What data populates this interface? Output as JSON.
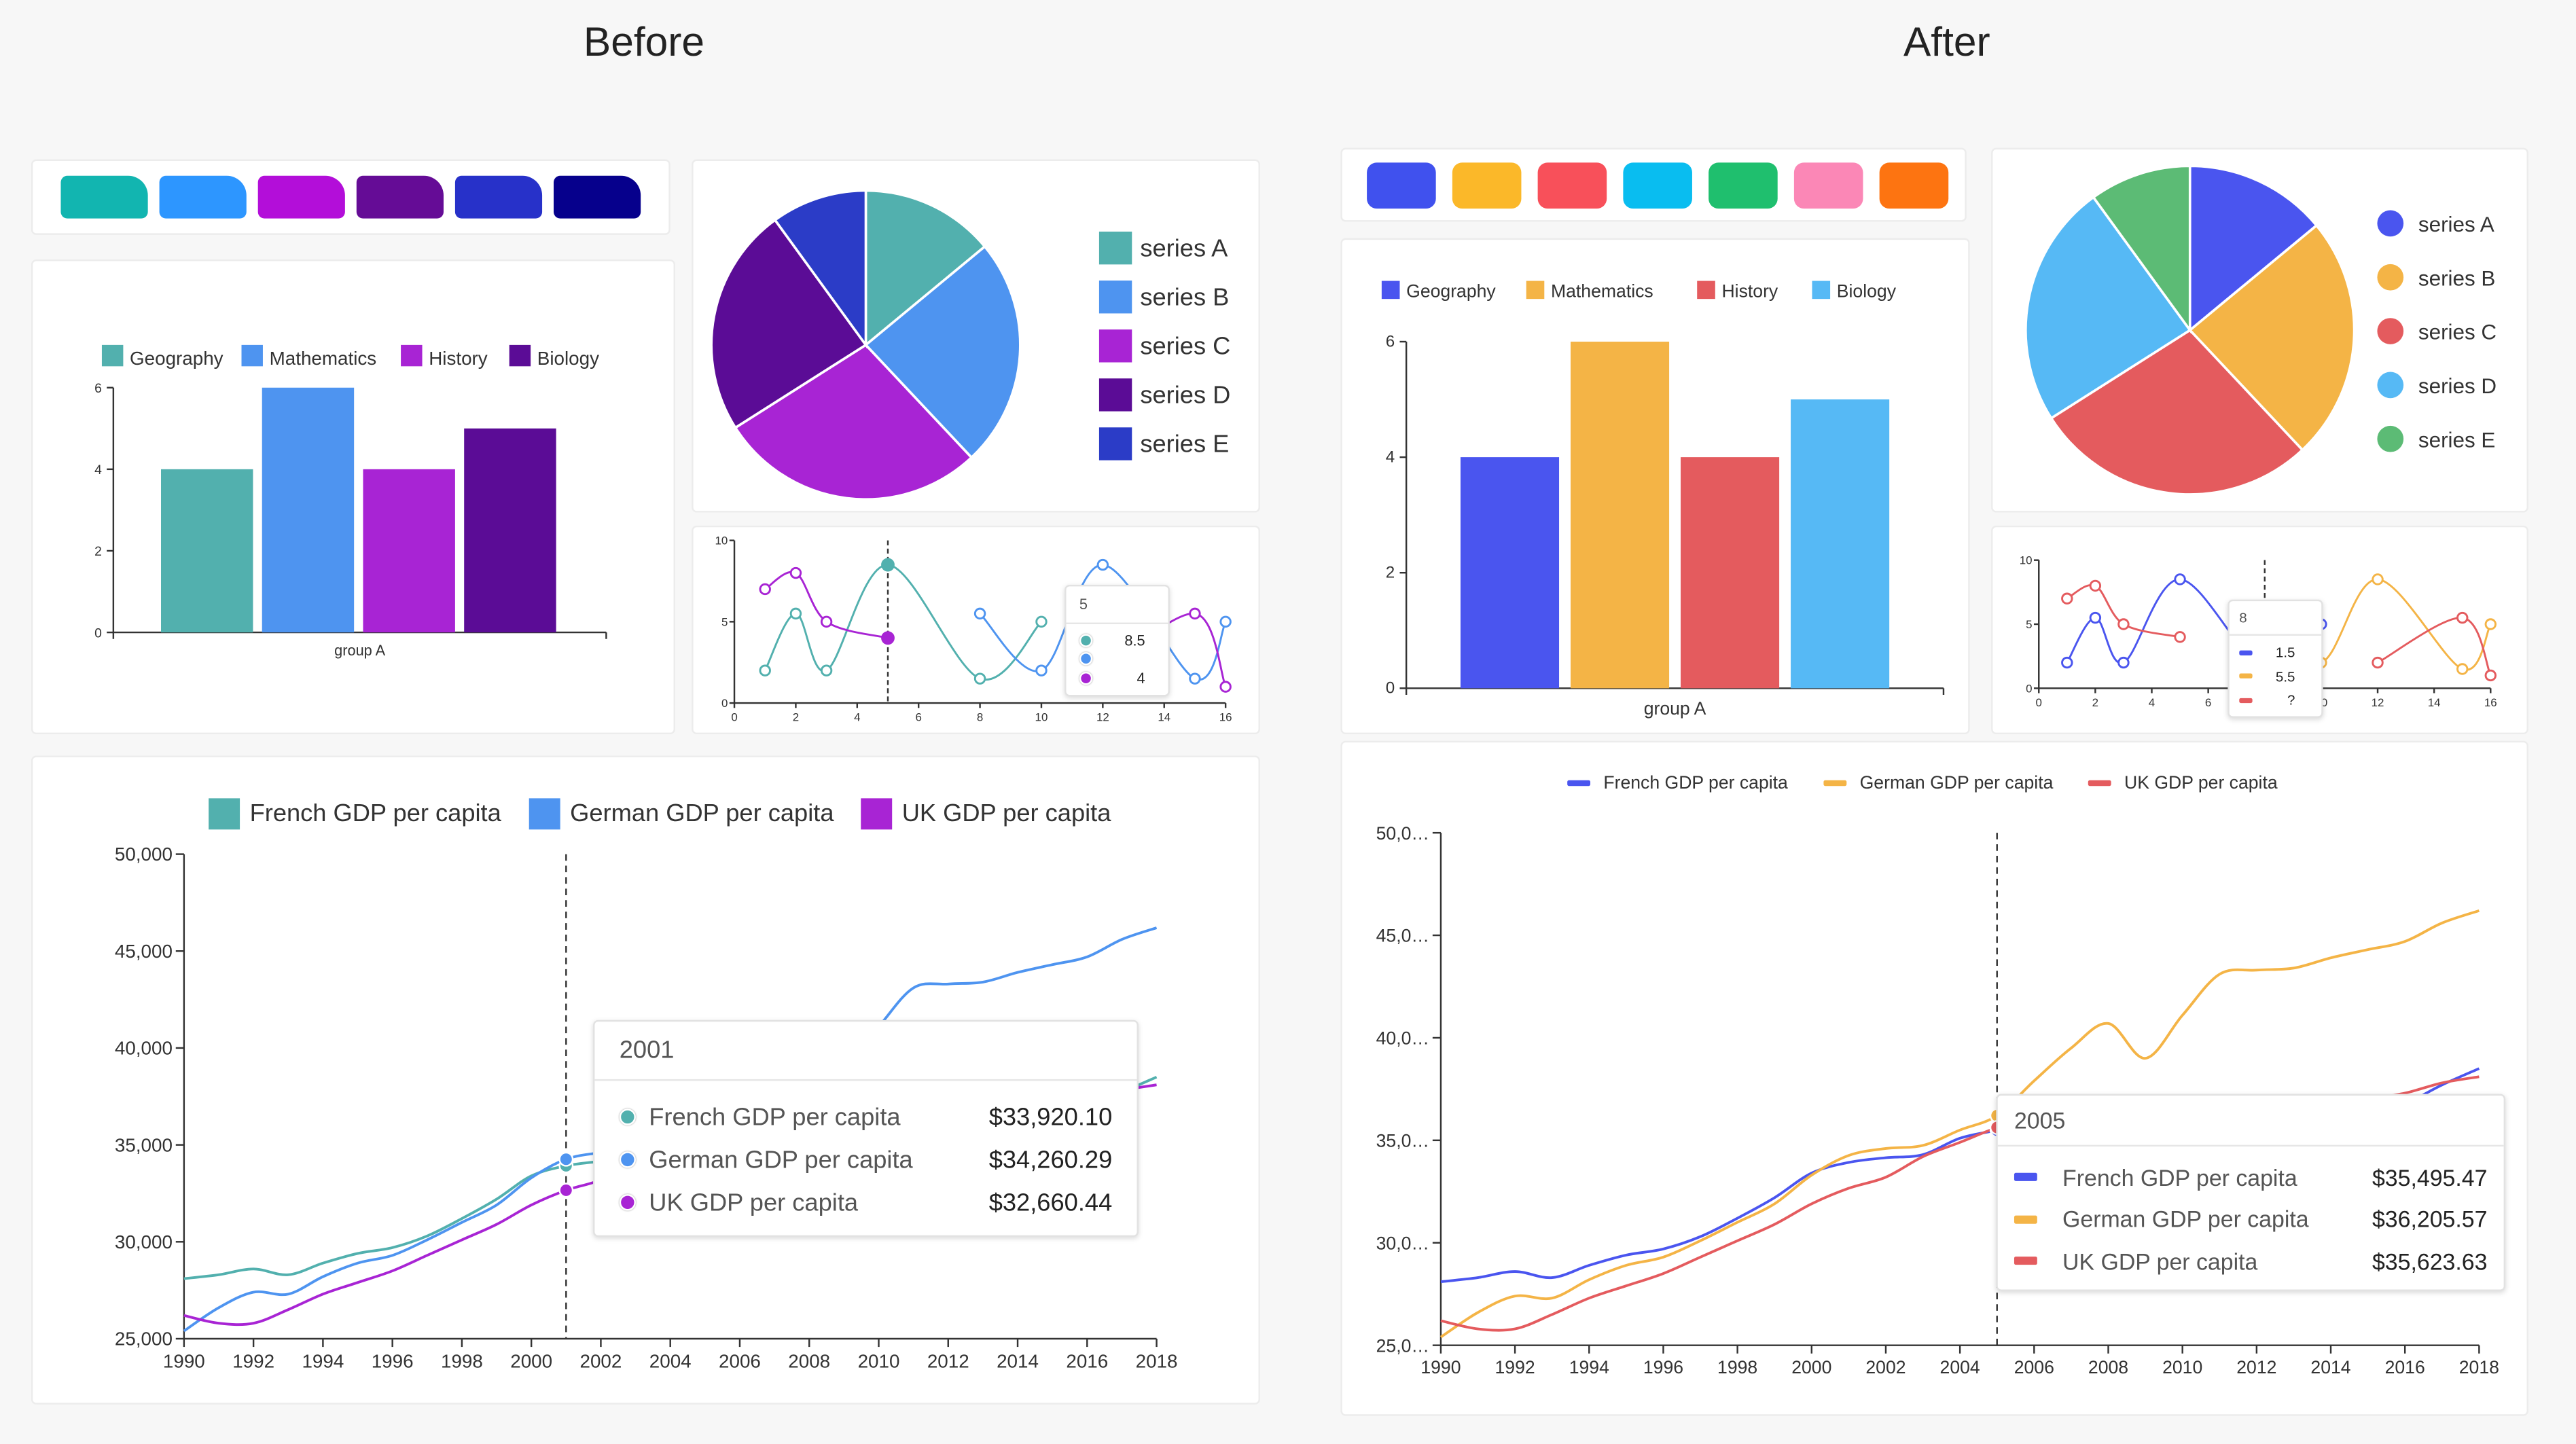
{
  "before": {
    "title": "Before",
    "swatches": [
      "#12b5b0",
      "#2d96ff",
      "#b30ed9",
      "#650c96",
      "#2731c9",
      "#06008c"
    ]
  },
  "after": {
    "title": "After",
    "swatches": [
      "#4051ee",
      "#fbb829",
      "#f8505a",
      "#09bdf0",
      "#1fbf6e",
      "#fb87b6",
      "#fd7411"
    ]
  },
  "chart_data": [
    {
      "type": "bar",
      "categories": [
        "group A"
      ],
      "series": [
        {
          "name": "Geography",
          "values": [
            4
          ]
        },
        {
          "name": "Mathematics",
          "values": [
            6
          ]
        },
        {
          "name": "History",
          "values": [
            4
          ]
        },
        {
          "name": "Biology",
          "values": [
            5
          ]
        }
      ],
      "colors": [
        "#52b0ae",
        "#4e94f0",
        "#a824d4",
        "#5b0c96"
      ],
      "ylim": [
        0,
        6
      ],
      "yticks": [
        "0",
        "2",
        "4",
        "6"
      ],
      "legend": "top"
    },
    {
      "type": "pie",
      "labels": [
        "series A",
        "series B",
        "series C",
        "series D",
        "series E"
      ],
      "values": [
        14,
        24,
        28,
        24,
        10
      ],
      "colors": [
        "#52b0ae",
        "#4e94f0",
        "#a824d4",
        "#5b0c96",
        "#2b3cc7"
      ],
      "legend": "right",
      "legend_marker": "square"
    },
    {
      "type": "line",
      "xlim": [
        0,
        16
      ],
      "ylim": [
        0,
        10
      ],
      "xticks": [
        "0",
        "2",
        "4",
        "6",
        "8",
        "10",
        "12",
        "14",
        "16"
      ],
      "yticks": [
        "0",
        "5",
        "10"
      ],
      "colors": [
        "#52b0ae",
        "#4e94f0",
        "#a824d4"
      ],
      "series": [
        {
          "points": [
            [
              1,
              2
            ],
            [
              2,
              5.5
            ],
            [
              3,
              2
            ],
            [
              5,
              8.5
            ],
            [
              8,
              1.5
            ],
            [
              10,
              5
            ]
          ]
        },
        {
          "points": [
            [
              8,
              5.5
            ],
            [
              10,
              2
            ],
            [
              12,
              8.5
            ],
            [
              15,
              1.5
            ],
            [
              16,
              5
            ]
          ]
        },
        {
          "points": [
            [
              1,
              7
            ],
            [
              2,
              8
            ],
            [
              3,
              5
            ],
            [
              5,
              4
            ],
            null,
            [
              12,
              2
            ],
            [
              15,
              5.5
            ],
            [
              16,
              1
            ]
          ]
        }
      ],
      "hover_x": 5,
      "tooltip": {
        "title": "5",
        "values": [
          "8.5",
          "",
          "4"
        ],
        "marker": "circle"
      }
    },
    {
      "type": "line",
      "title": "",
      "legend": "top",
      "legend_marker": "square",
      "x": [
        1990,
        1991,
        1992,
        1993,
        1994,
        1995,
        1996,
        1997,
        1998,
        1999,
        2000,
        2001,
        2002,
        2003,
        2004,
        2005,
        2006,
        2007,
        2008,
        2009,
        2010,
        2011,
        2012,
        2013,
        2014,
        2015,
        2016,
        2017,
        2018
      ],
      "xticks": [
        "1990",
        "1992",
        "1994",
        "1996",
        "1998",
        "2000",
        "2002",
        "2004",
        "2006",
        "2008",
        "2010",
        "2012",
        "2014",
        "2016",
        "2018"
      ],
      "yticks": [
        "25,000",
        "30,000",
        "35,000",
        "40,000",
        "45,000",
        "50,000"
      ],
      "ylim": [
        25000,
        50000
      ],
      "colors": [
        "#52b0ae",
        "#4e94f0",
        "#a824d4"
      ],
      "series": [
        {
          "name": "French GDP per capita",
          "values": [
            28100,
            28300,
            28600,
            28300,
            28900,
            29400,
            29700,
            30300,
            31200,
            32200,
            33400,
            33920,
            34150,
            34300,
            35100,
            35495,
            35900,
            36300,
            36300,
            35300,
            35600,
            36000,
            35900,
            35900,
            36100,
            36400,
            36800,
            37700,
            38500
          ]
        },
        {
          "name": "German GDP per capita",
          "values": [
            25400,
            26600,
            27400,
            27300,
            28200,
            28900,
            29300,
            30100,
            31000,
            31900,
            33300,
            34260,
            34600,
            34750,
            35500,
            36205,
            37900,
            39500,
            40700,
            39000,
            41100,
            43100,
            43300,
            43400,
            43900,
            44300,
            44700,
            45600,
            46200
          ]
        },
        {
          "name": "UK GDP per capita",
          "values": [
            26200,
            25800,
            25800,
            26500,
            27300,
            27900,
            28500,
            29300,
            30100,
            30900,
            31900,
            32660,
            33200,
            34200,
            34900,
            35624,
            36200,
            36700,
            36300,
            34800,
            35300,
            35600,
            35800,
            36100,
            36600,
            37000,
            37300,
            37800,
            38100
          ]
        }
      ],
      "hover_x": 2001,
      "tooltip": {
        "title": "2001",
        "values": [
          "$33,920.10",
          "$34,260.29",
          "$32,660.44"
        ],
        "marker": "circle"
      }
    },
    {
      "type": "bar",
      "categories": [
        "group A"
      ],
      "series": [
        {
          "name": "Geography",
          "values": [
            4
          ]
        },
        {
          "name": "Mathematics",
          "values": [
            6
          ]
        },
        {
          "name": "History",
          "values": [
            4
          ]
        },
        {
          "name": "Biology",
          "values": [
            5
          ]
        }
      ],
      "colors": [
        "#4a55ef",
        "#f4b446",
        "#e45b5e",
        "#56b9f5"
      ],
      "ylim": [
        0,
        6
      ],
      "yticks": [
        "0",
        "2",
        "4",
        "6"
      ],
      "legend": "top"
    },
    {
      "type": "pie",
      "labels": [
        "series A",
        "series B",
        "series C",
        "series D",
        "series E"
      ],
      "values": [
        14,
        24,
        28,
        24,
        10
      ],
      "colors": [
        "#4a55ef",
        "#f4b446",
        "#e45b5e",
        "#56b9f5",
        "#5cbb75"
      ],
      "legend": "right",
      "legend_marker": "circle"
    },
    {
      "type": "line",
      "xlim": [
        0,
        16
      ],
      "ylim": [
        0,
        10
      ],
      "xticks": [
        "0",
        "2",
        "4",
        "6",
        "8",
        "10",
        "12",
        "14",
        "16"
      ],
      "yticks": [
        "0",
        "5",
        "10"
      ],
      "colors": [
        "#4a55ef",
        "#f4b446",
        "#e45b5e"
      ],
      "series": [
        {
          "points": [
            [
              1,
              2
            ],
            [
              2,
              5.5
            ],
            [
              3,
              2
            ],
            [
              5,
              8.5
            ],
            [
              8,
              1.5
            ],
            [
              10,
              5
            ]
          ]
        },
        {
          "points": [
            [
              8,
              5.5
            ],
            [
              10,
              2
            ],
            [
              12,
              8.5
            ],
            [
              15,
              1.5
            ],
            [
              16,
              5
            ]
          ]
        },
        {
          "points": [
            [
              1,
              7
            ],
            [
              2,
              8
            ],
            [
              3,
              5
            ],
            [
              5,
              4
            ],
            null,
            [
              12,
              2
            ],
            [
              15,
              5.5
            ],
            [
              16,
              1
            ]
          ]
        }
      ],
      "hover_x": 8,
      "tooltip": {
        "title": "8",
        "values": [
          "1.5",
          "5.5",
          "?"
        ],
        "marker": "line"
      }
    },
    {
      "type": "line",
      "title": "",
      "legend": "top",
      "legend_marker": "line",
      "x": [
        1990,
        1991,
        1992,
        1993,
        1994,
        1995,
        1996,
        1997,
        1998,
        1999,
        2000,
        2001,
        2002,
        2003,
        2004,
        2005,
        2006,
        2007,
        2008,
        2009,
        2010,
        2011,
        2012,
        2013,
        2014,
        2015,
        2016,
        2017,
        2018
      ],
      "xticks": [
        "1990",
        "1992",
        "1994",
        "1996",
        "1998",
        "2000",
        "2002",
        "2004",
        "2006",
        "2008",
        "2010",
        "2012",
        "2014",
        "2016",
        "2018"
      ],
      "yticks": [
        "25,0…",
        "30,0…",
        "35,0…",
        "40,0…",
        "45,0…",
        "50,0…"
      ],
      "ylim": [
        25000,
        50000
      ],
      "colors": [
        "#4a55ef",
        "#f4b446",
        "#e45b5e"
      ],
      "series": [
        {
          "name": "French GDP per capita",
          "values": [
            28100,
            28300,
            28600,
            28300,
            28900,
            29400,
            29700,
            30300,
            31200,
            32200,
            33400,
            33920,
            34150,
            34300,
            35100,
            35495,
            35900,
            36300,
            36300,
            35300,
            35600,
            36000,
            35900,
            35900,
            36100,
            36400,
            36800,
            37700,
            38500
          ]
        },
        {
          "name": "German GDP per capita",
          "values": [
            25400,
            26600,
            27400,
            27300,
            28200,
            28900,
            29300,
            30100,
            31000,
            31900,
            33300,
            34260,
            34600,
            34750,
            35500,
            36205,
            37900,
            39500,
            40700,
            39000,
            41100,
            43100,
            43300,
            43400,
            43900,
            44300,
            44700,
            45600,
            46200
          ]
        },
        {
          "name": "UK GDP per capita",
          "values": [
            26200,
            25800,
            25800,
            26500,
            27300,
            27900,
            28500,
            29300,
            30100,
            30900,
            31900,
            32660,
            33200,
            34200,
            34900,
            35624,
            36200,
            36700,
            36300,
            34800,
            35300,
            35600,
            35800,
            36100,
            36600,
            37000,
            37300,
            37800,
            38100
          ]
        }
      ],
      "hover_x": 2005,
      "tooltip": {
        "title": "2005",
        "values": [
          "$35,495.47",
          "$36,205.57",
          "$35,623.63"
        ],
        "marker": "line"
      }
    }
  ]
}
